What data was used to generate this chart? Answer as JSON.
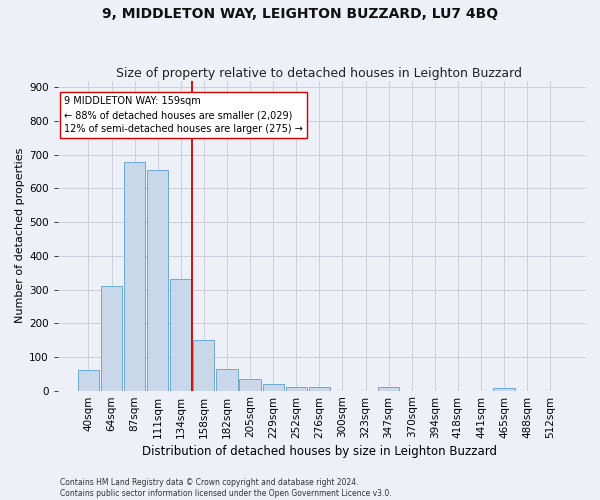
{
  "title": "9, MIDDLETON WAY, LEIGHTON BUZZARD, LU7 4BQ",
  "subtitle": "Size of property relative to detached houses in Leighton Buzzard",
  "xlabel": "Distribution of detached houses by size in Leighton Buzzard",
  "ylabel": "Number of detached properties",
  "footnote1": "Contains HM Land Registry data © Crown copyright and database right 2024.",
  "footnote2": "Contains public sector information licensed under the Open Government Licence v3.0.",
  "bar_labels": [
    "40sqm",
    "64sqm",
    "87sqm",
    "111sqm",
    "134sqm",
    "158sqm",
    "182sqm",
    "205sqm",
    "229sqm",
    "252sqm",
    "276sqm",
    "300sqm",
    "323sqm",
    "347sqm",
    "370sqm",
    "394sqm",
    "418sqm",
    "441sqm",
    "465sqm",
    "488sqm",
    "512sqm"
  ],
  "bar_values": [
    60,
    310,
    680,
    655,
    330,
    150,
    65,
    35,
    20,
    12,
    12,
    0,
    0,
    10,
    0,
    0,
    0,
    0,
    8,
    0,
    0
  ],
  "bar_color": "#c8d8ea",
  "bar_edge_color": "#6aaad4",
  "property_line_index": 5,
  "property_line_color": "#cc0000",
  "annotation_text": "9 MIDDLETON WAY: 159sqm\n← 88% of detached houses are smaller (2,029)\n12% of semi-detached houses are larger (275) →",
  "annotation_box_color": "#ffffff",
  "annotation_box_edge_color": "#cc0000",
  "ylim": [
    0,
    920
  ],
  "yticks": [
    0,
    100,
    200,
    300,
    400,
    500,
    600,
    700,
    800,
    900
  ],
  "grid_color": "#c8c8d8",
  "background_color": "#eef0f8",
  "title_fontsize": 10,
  "subtitle_fontsize": 9,
  "tick_fontsize": 7.5,
  "ylabel_fontsize": 8,
  "xlabel_fontsize": 8.5,
  "annotation_fontsize": 7,
  "footnote_fontsize": 5.5
}
